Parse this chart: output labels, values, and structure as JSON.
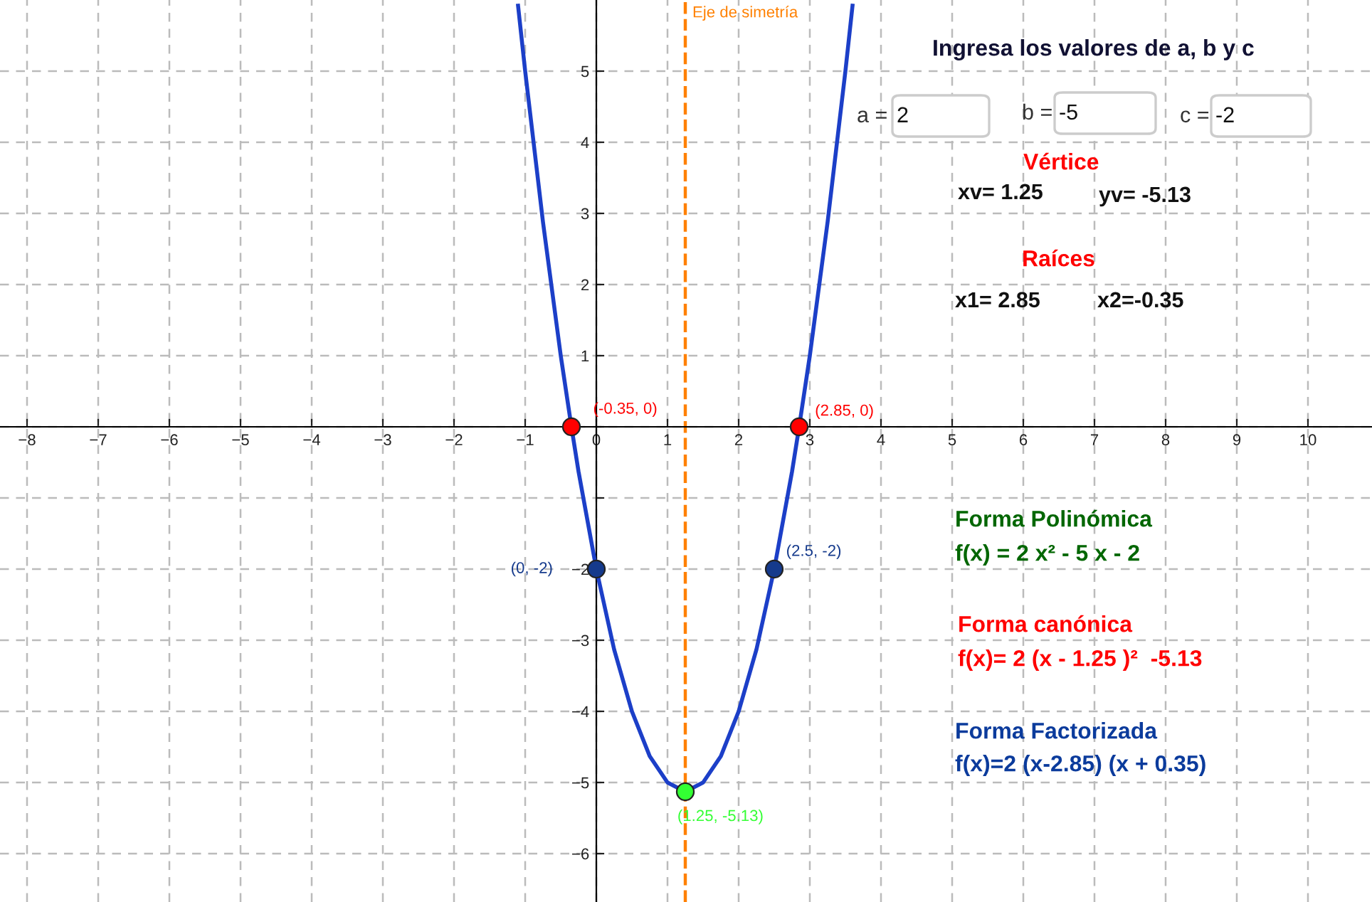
{
  "chart_data": {
    "type": "line",
    "x": [
      -1.1,
      -1,
      -0.75,
      -0.5,
      -0.35,
      -0.25,
      0,
      0.25,
      0.5,
      0.75,
      1,
      1.25,
      1.5,
      1.75,
      2,
      2.25,
      2.5,
      2.75,
      2.85,
      3,
      3.25,
      3.5,
      3.6
    ],
    "series": [
      {
        "color": "#1c3fc8",
        "values": [
          5.92,
          5,
          2.88,
          1,
          0,
          -0.63,
          -2,
          -3.13,
          -4,
          -4.63,
          -5,
          -5.13,
          -5,
          -4.63,
          -4,
          -3.13,
          -2,
          -0.63,
          0,
          1,
          2.88,
          5,
          5.92
        ]
      },
      {
        "type": "scatter",
        "marker": "circle",
        "color": "#ff0000",
        "x": [
          -0.35,
          2.85
        ],
        "values": [
          0,
          0
        ]
      },
      {
        "type": "scatter",
        "marker": "circle",
        "color": "#153a8c",
        "x": [
          0,
          2.5
        ],
        "values": [
          -2,
          -2
        ]
      },
      {
        "type": "scatter",
        "marker": "circle",
        "color": "#33ff33",
        "x": [
          1.25
        ],
        "values": [
          -5.13
        ]
      }
    ],
    "xlim": [
      -8.38,
      10.9
    ],
    "ylim": [
      -6.68,
      6.0
    ],
    "xticks": [
      {
        "value": -8,
        "label": "−8"
      },
      {
        "value": -7,
        "label": "−7"
      },
      {
        "value": -6,
        "label": "−6"
      },
      {
        "value": -5,
        "label": "−5"
      },
      {
        "value": -4,
        "label": "−4"
      },
      {
        "value": -3,
        "label": "−3"
      },
      {
        "value": -2,
        "label": "−2"
      },
      {
        "value": -1,
        "label": "−1"
      },
      0,
      1,
      2,
      3,
      4,
      5,
      6,
      7,
      8,
      9,
      10
    ],
    "yticks": [
      {
        "value": -6,
        "label": "−6"
      },
      {
        "value": -5,
        "label": "−5"
      },
      {
        "value": -4,
        "label": "−4"
      },
      {
        "value": -3,
        "label": "−3"
      },
      {
        "value": -2,
        "label": "−2"
      },
      {
        "value": -1,
        "label": null
      },
      {
        "value": 0,
        "label": null
      },
      1,
      2,
      3,
      4,
      5
    ],
    "grid": true,
    "ref_lines": [
      {
        "axis": "x",
        "value": 1.25,
        "label": "Eje de simetría",
        "color": "#ff8000",
        "line_style": "dashed"
      }
    ],
    "annotations": [
      {
        "text": "(-0.35, 0)",
        "x": -0.35,
        "y": 0
      },
      {
        "text": "(2.85, 0)",
        "x": 2.85,
        "y": 0
      },
      {
        "text": "(0, -2)",
        "x": 0,
        "y": -2
      },
      {
        "text": "(2.5, -2)",
        "x": 2.5,
        "y": -2
      },
      {
        "text": "(1.25, -5.13)",
        "x": 1.25,
        "y": -5.13
      },
      "Ingresa los valores de a, b y c",
      "a =",
      "2",
      "b =",
      "-5",
      "c =",
      "-2",
      "Vértice",
      "xv= 1.25",
      "yv= -5.13",
      "Raíces",
      "x1= 2.85",
      "x2=-0.35",
      "Forma Polinómica",
      "f(x) = 2 x² - 5 x - 2",
      "Forma canónica",
      "f(x)= 2 (x - 1.25 )²  -5.13",
      "Forma Factorizada",
      "f(x)=2 (x-2.85) (x + 0.35)"
    ]
  }
}
